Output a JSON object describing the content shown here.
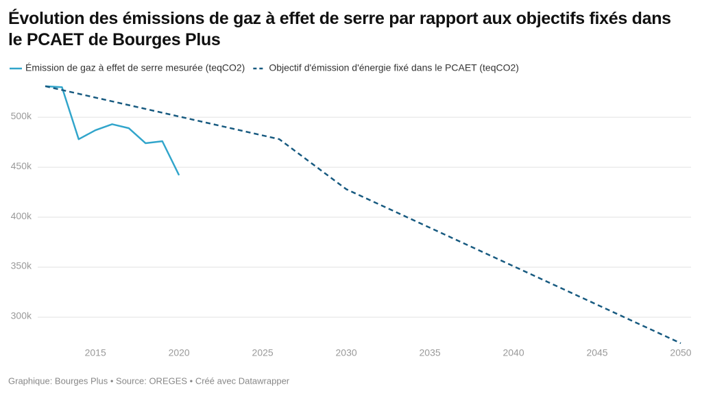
{
  "chart_data": {
    "type": "line",
    "title": "Évolution des émissions de gaz à effet de serre par rapport aux objectifs fixés dans le PCAET de Bourges Plus",
    "footer": "Graphique: Bourges Plus • Source: OREGES • Créé avec Datawrapper",
    "series": [
      {
        "name": "Émission de gaz à effet de serre mesurée (teqCO2)",
        "color": "#31a5cb",
        "dash": false,
        "x": [
          2012,
          2013,
          2014,
          2015,
          2016,
          2017,
          2018,
          2019,
          2020
        ],
        "values": [
          531000,
          530000,
          478000,
          487000,
          493000,
          489000,
          474000,
          476000,
          442000
        ]
      },
      {
        "name": "Objectif d'émission d'énergie fixé dans le PCAET (teqCO2)",
        "color": "#175a80",
        "dash": true,
        "x": [
          2012,
          2026,
          2030,
          2040,
          2050
        ],
        "values": [
          531000,
          478000,
          428000,
          351000,
          274000
        ]
      }
    ],
    "xlim": [
      2012,
      2050
    ],
    "xticks": [
      2015,
      2020,
      2025,
      2030,
      2035,
      2040,
      2045,
      2050
    ],
    "ylim": [
      275000,
      535000
    ],
    "yticks": [
      {
        "value": 300000,
        "label": "300k"
      },
      {
        "value": 350000,
        "label": "350k"
      },
      {
        "value": 400000,
        "label": "400k"
      },
      {
        "value": 450000,
        "label": "450k"
      },
      {
        "value": 500000,
        "label": "500k"
      }
    ],
    "grid": true
  }
}
